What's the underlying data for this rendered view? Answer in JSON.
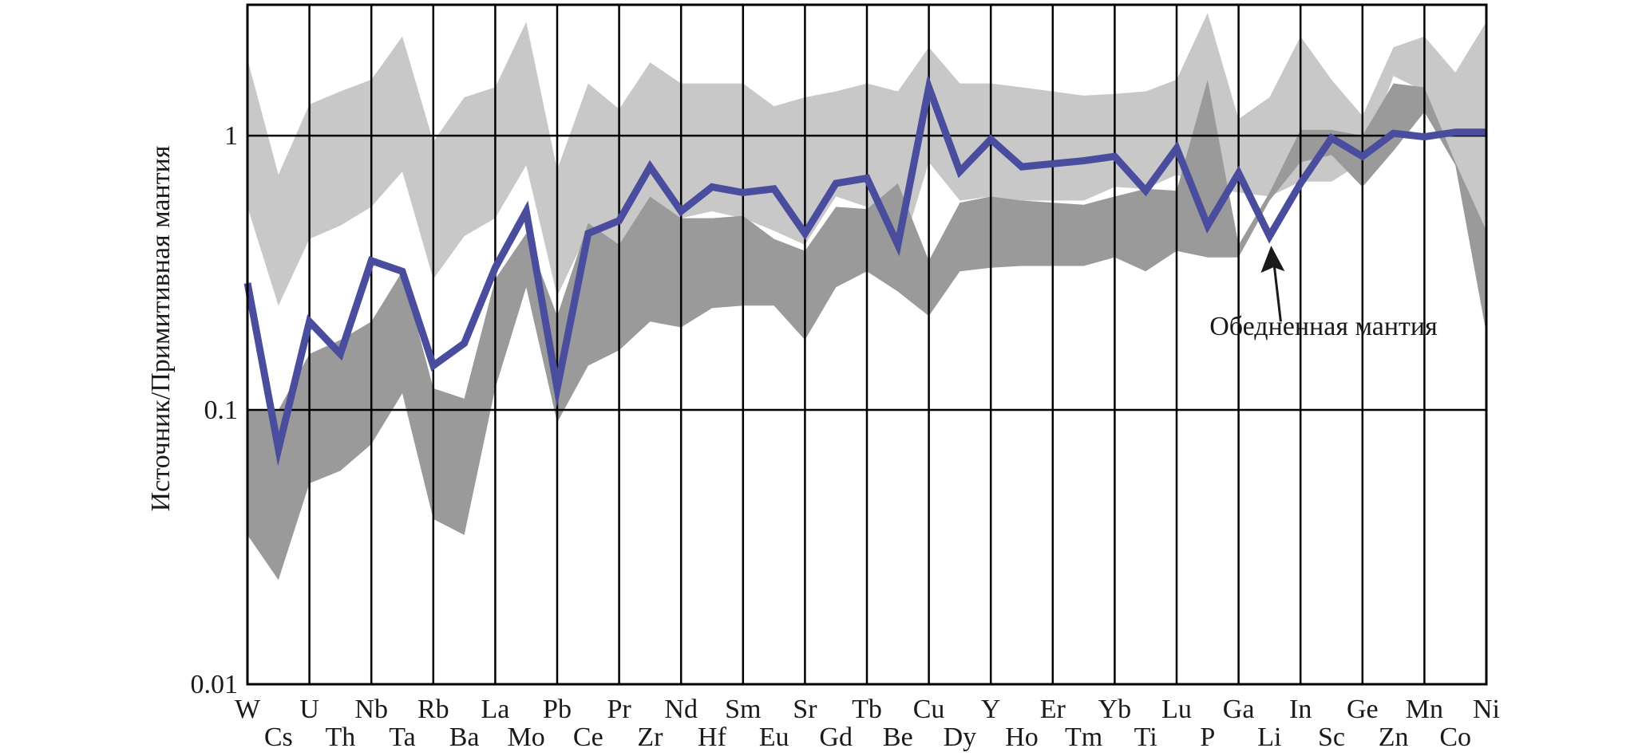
{
  "chart_data": {
    "type": "line",
    "ylabel": "Источник/Примитивная мантия",
    "y_scale": "log",
    "ylim": [
      0.01,
      3
    ],
    "y_ticks": [
      {
        "value": 0.01,
        "label": "0.01"
      },
      {
        "value": 0.1,
        "label": "0.1"
      },
      {
        "value": 1,
        "label": "1"
      }
    ],
    "categories": [
      "W",
      "Cs",
      "U",
      "Th",
      "Nb",
      "Ta",
      "Rb",
      "Ba",
      "La",
      "Mo",
      "Pb",
      "Ce",
      "Pr",
      "Zr",
      "Nd",
      "Hf",
      "Sm",
      "Eu",
      "Sr",
      "Gd",
      "Tb",
      "Be",
      "Cu",
      "Dy",
      "Y",
      "Ho",
      "Er",
      "Tm",
      "Yb",
      "Ti",
      "Lu",
      "P",
      "Ga",
      "Li",
      "In",
      "Sc",
      "Ge",
      "Zn",
      "Mn",
      "Co",
      "Ni"
    ],
    "grid": {
      "vertical": "every-other-category",
      "horizontal": [
        0.1,
        1
      ]
    },
    "series": [
      {
        "kind": "line",
        "color": "#4a4d9e",
        "values": [
          0.29,
          0.072,
          0.21,
          0.16,
          0.35,
          0.32,
          0.145,
          0.175,
          0.33,
          0.53,
          0.12,
          0.44,
          0.49,
          0.77,
          0.53,
          0.65,
          0.62,
          0.64,
          0.44,
          0.67,
          0.7,
          0.4,
          1.5,
          0.74,
          0.97,
          0.77,
          0.79,
          0.81,
          0.84,
          0.63,
          0.9,
          0.47,
          0.73,
          0.43,
          0.67,
          0.98,
          0.84,
          1.02,
          0.99,
          1.03,
          1.03
        ]
      },
      {
        "kind": "band",
        "color": "#c8c8c8",
        "upper": [
          1.9,
          0.72,
          1.3,
          1.45,
          1.6,
          2.3,
          0.95,
          1.38,
          1.5,
          2.6,
          0.75,
          1.55,
          1.25,
          1.85,
          1.55,
          1.55,
          1.55,
          1.28,
          1.38,
          1.45,
          1.55,
          1.45,
          2.1,
          1.55,
          1.55,
          1.5,
          1.45,
          1.4,
          1.42,
          1.45,
          1.6,
          2.8,
          1.15,
          1.38,
          2.3,
          1.6,
          1.18,
          2.1,
          2.3,
          1.7,
          2.6
        ],
        "lower": [
          0.55,
          0.24,
          0.42,
          0.47,
          0.55,
          0.74,
          0.3,
          0.43,
          0.5,
          0.78,
          0.26,
          0.45,
          0.39,
          0.6,
          0.5,
          0.53,
          0.5,
          0.45,
          0.4,
          0.6,
          0.55,
          0.34,
          0.8,
          0.58,
          0.6,
          0.58,
          0.58,
          0.58,
          0.65,
          0.64,
          0.72,
          0.65,
          0.62,
          0.6,
          0.68,
          0.68,
          0.8,
          1.65,
          1.45,
          0.8,
          0.42
        ]
      },
      {
        "kind": "band",
        "color": "#9a9a9a",
        "upper": [
          0.1,
          0.1,
          0.16,
          0.18,
          0.21,
          0.32,
          0.12,
          0.11,
          0.3,
          0.44,
          0.22,
          0.48,
          0.4,
          0.6,
          0.5,
          0.5,
          0.51,
          0.42,
          0.38,
          0.55,
          0.54,
          0.67,
          0.35,
          0.57,
          0.6,
          0.58,
          0.57,
          0.56,
          0.6,
          0.64,
          0.63,
          1.6,
          0.4,
          0.62,
          1.05,
          1.05,
          1.0,
          1.55,
          1.5,
          0.8,
          0.45
        ],
        "lower": [
          0.035,
          0.024,
          0.054,
          0.06,
          0.075,
          0.115,
          0.04,
          0.035,
          0.12,
          0.28,
          0.09,
          0.145,
          0.165,
          0.21,
          0.2,
          0.235,
          0.24,
          0.24,
          0.18,
          0.28,
          0.32,
          0.27,
          0.22,
          0.32,
          0.33,
          0.335,
          0.335,
          0.335,
          0.36,
          0.32,
          0.38,
          0.36,
          0.36,
          0.58,
          0.8,
          0.85,
          0.65,
          0.88,
          1.22,
          0.78,
          0.19
        ]
      }
    ],
    "annotations": [
      {
        "text": "Обедненная мантия",
        "target_category": "Li"
      }
    ]
  }
}
